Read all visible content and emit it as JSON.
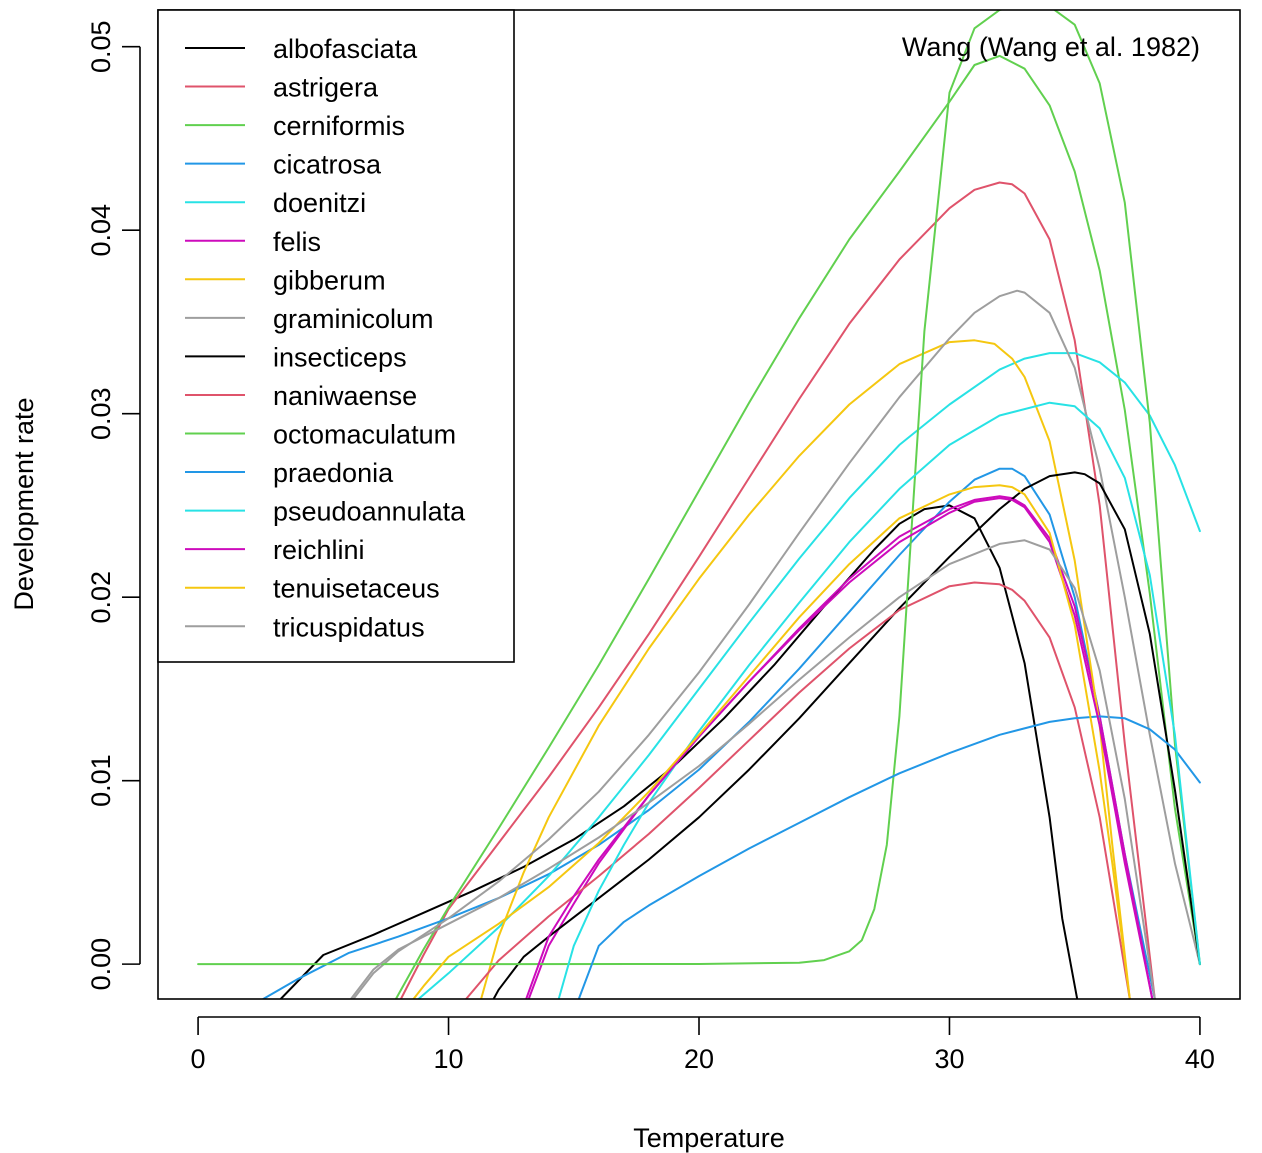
{
  "chart_data": {
    "type": "line",
    "title": "",
    "annotation": "Wang (Wang et al. 1982)",
    "xlabel": "Temperature",
    "ylabel": "Development rate",
    "xlim": [
      -1.6,
      41.6
    ],
    "ylim": [
      -0.0019,
      0.052
    ],
    "x_ticks": [
      0,
      10,
      20,
      30,
      40
    ],
    "y_ticks": [
      0.0,
      0.01,
      0.02,
      0.03,
      0.04,
      0.05
    ],
    "y_tick_labels": [
      "0.00",
      "0.01",
      "0.02",
      "0.03",
      "0.04",
      "0.05"
    ],
    "legend_position": "top-left",
    "grid": false,
    "series": [
      {
        "name": "albofasciata",
        "color": "#000000",
        "x": [
          3.3,
          5,
          7,
          9,
          11,
          13,
          15,
          17,
          19,
          21,
          23,
          25,
          27,
          28,
          29,
          30,
          31,
          32,
          33,
          34,
          34.5,
          35.1
        ],
        "y": [
          -0.0019,
          0.0005,
          0.0016,
          0.0028,
          0.004,
          0.0053,
          0.0068,
          0.0086,
          0.0108,
          0.0134,
          0.0163,
          0.0195,
          0.0226,
          0.024,
          0.0248,
          0.025,
          0.0243,
          0.0216,
          0.0164,
          0.008,
          0.0025,
          -0.0019
        ]
      },
      {
        "name": "astrigera",
        "color": "#DF536B",
        "x": [
          8.1,
          9,
          10,
          12,
          14,
          16,
          18,
          20,
          22,
          24,
          26,
          28,
          30,
          31,
          32,
          32.5,
          33,
          34,
          35,
          36,
          37,
          38.2
        ],
        "y": [
          -0.0019,
          0.0005,
          0.003,
          0.0066,
          0.0102,
          0.014,
          0.018,
          0.0222,
          0.0265,
          0.0308,
          0.0349,
          0.0384,
          0.0412,
          0.0422,
          0.0426,
          0.0425,
          0.042,
          0.0395,
          0.034,
          0.025,
          0.012,
          -0.0019
        ]
      },
      {
        "name": "cerniformis",
        "color": "#61D04F",
        "x": [
          7.9,
          9,
          10,
          12,
          14,
          16,
          18,
          20,
          22,
          24,
          26,
          28,
          30,
          31,
          32,
          33,
          34,
          35,
          36,
          37,
          38,
          39,
          40
        ],
        "y": [
          -0.0019,
          0.0008,
          0.0031,
          0.0074,
          0.0118,
          0.0163,
          0.021,
          0.0258,
          0.0306,
          0.0352,
          0.0395,
          0.0432,
          0.047,
          0.049,
          0.0495,
          0.0488,
          0.0468,
          0.0432,
          0.0378,
          0.0302,
          0.0202,
          0.0085,
          0.0
        ]
      },
      {
        "name": "cicatrosa",
        "color": "#2297E6",
        "x": [
          2.6,
          4,
          6,
          8,
          10,
          12,
          14,
          16,
          18,
          20,
          22,
          24,
          26,
          28,
          30,
          31,
          32,
          32.5,
          33,
          34,
          35,
          36,
          37,
          38.2
        ],
        "y": [
          -0.0019,
          -0.0008,
          0.0006,
          0.0015,
          0.0025,
          0.0036,
          0.0049,
          0.0065,
          0.0084,
          0.0106,
          0.0132,
          0.0161,
          0.0192,
          0.0223,
          0.0252,
          0.0264,
          0.027,
          0.027,
          0.0266,
          0.0245,
          0.02,
          0.0135,
          0.006,
          -0.0019
        ]
      },
      {
        "name": "doenitzi",
        "color": "#28E2E5",
        "x": [
          8.8,
          10,
          12,
          14,
          16,
          18,
          20,
          22,
          24,
          26,
          28,
          30,
          32,
          33,
          34,
          35,
          36,
          37,
          38,
          39,
          40
        ],
        "y": [
          -0.0019,
          -0.0005,
          0.002,
          0.0048,
          0.008,
          0.0114,
          0.015,
          0.0186,
          0.0221,
          0.0254,
          0.0283,
          0.0305,
          0.0324,
          0.033,
          0.0333,
          0.0333,
          0.0328,
          0.0317,
          0.0299,
          0.0272,
          0.0236
        ]
      },
      {
        "name": "felis",
        "color": "#CD0BBC",
        "x": [
          13.2,
          14,
          15,
          16,
          18,
          20,
          22,
          24,
          26,
          28,
          30,
          31,
          32,
          32.5,
          33,
          34,
          35,
          36,
          37,
          38.1
        ],
        "y": [
          -0.0019,
          0.001,
          0.0033,
          0.0055,
          0.0092,
          0.0124,
          0.0154,
          0.0183,
          0.021,
          0.0233,
          0.0248,
          0.0253,
          0.0255,
          0.0254,
          0.025,
          0.0232,
          0.0195,
          0.0135,
          0.006,
          -0.0019
        ]
      },
      {
        "name": "gibberum",
        "color": "#F5C710",
        "x": [
          11.3,
          12,
          13,
          14,
          16,
          18,
          20,
          22,
          24,
          26,
          28,
          30,
          31,
          31.8,
          32.5,
          33,
          34,
          35,
          36,
          36.5,
          37.2
        ],
        "y": [
          -0.0019,
          0.0015,
          0.005,
          0.008,
          0.013,
          0.0172,
          0.021,
          0.0245,
          0.0277,
          0.0305,
          0.0327,
          0.0339,
          0.034,
          0.0338,
          0.033,
          0.032,
          0.0285,
          0.022,
          0.013,
          0.0065,
          -0.0019
        ]
      },
      {
        "name": "graminicolum",
        "color": "#9E9E9E",
        "x": [
          6.2,
          7,
          8,
          10,
          12,
          14,
          16,
          18,
          20,
          22,
          24,
          26,
          28,
          30,
          31,
          32,
          32.7,
          33,
          34,
          35,
          36,
          37,
          38,
          39,
          40
        ],
        "y": [
          -0.0019,
          -0.0005,
          0.0007,
          0.0025,
          0.0045,
          0.0068,
          0.0094,
          0.0125,
          0.0159,
          0.0196,
          0.0235,
          0.0273,
          0.0309,
          0.0341,
          0.0355,
          0.0364,
          0.0367,
          0.0366,
          0.0355,
          0.0325,
          0.027,
          0.02,
          0.0125,
          0.0055,
          0.0
        ]
      },
      {
        "name": "insecticeps",
        "color": "#000000",
        "x": [
          11.8,
          12,
          13,
          14,
          16,
          18,
          20,
          22,
          24,
          26,
          28,
          30,
          32,
          33,
          34,
          35,
          35.4,
          36,
          37,
          38,
          39,
          40
        ],
        "y": [
          -0.0019,
          -0.0014,
          0.0004,
          0.0015,
          0.0036,
          0.0057,
          0.008,
          0.0106,
          0.0134,
          0.0164,
          0.0194,
          0.0222,
          0.0248,
          0.0259,
          0.0266,
          0.0268,
          0.0267,
          0.0262,
          0.0237,
          0.018,
          0.0095,
          0.0
        ]
      },
      {
        "name": "naniwaense",
        "color": "#DF536B",
        "x": [
          10.7,
          12,
          14,
          16,
          18,
          20,
          22,
          24,
          26,
          28,
          30,
          31,
          32,
          32.5,
          33,
          34,
          35,
          36,
          37.2
        ],
        "y": [
          -0.0019,
          0.0002,
          0.0026,
          0.0048,
          0.0071,
          0.0096,
          0.0122,
          0.0148,
          0.0172,
          0.0193,
          0.0206,
          0.0208,
          0.0207,
          0.0204,
          0.0198,
          0.0178,
          0.014,
          0.008,
          -0.0019
        ]
      },
      {
        "name": "octomaculatum",
        "color": "#61D04F",
        "x": [
          0,
          10,
          20,
          24,
          25,
          26,
          26.5,
          27,
          27.5,
          28,
          28.5,
          29,
          30,
          31,
          32,
          33,
          34,
          35,
          36,
          37,
          38,
          39,
          40
        ],
        "y": [
          0,
          0,
          1e-05,
          8e-05,
          0.00022,
          0.0007,
          0.0013,
          0.003,
          0.0065,
          0.0135,
          0.024,
          0.0345,
          0.0475,
          0.051,
          0.052,
          0.0523,
          0.0522,
          0.0512,
          0.048,
          0.0415,
          0.0295,
          0.012,
          0.0
        ]
      },
      {
        "name": "praedonia",
        "color": "#2297E6",
        "x": [
          15.2,
          16,
          17,
          18,
          20,
          22,
          24,
          26,
          28,
          30,
          32,
          34,
          35,
          36,
          37,
          38,
          39,
          40
        ],
        "y": [
          -0.0019,
          0.001,
          0.0023,
          0.0032,
          0.0048,
          0.0063,
          0.0077,
          0.0091,
          0.0104,
          0.0115,
          0.0125,
          0.0132,
          0.0134,
          0.0135,
          0.0134,
          0.0128,
          0.0117,
          0.0099
        ]
      },
      {
        "name": "pseudoannulata",
        "color": "#28E2E5",
        "x": [
          14.4,
          15,
          16,
          17,
          18,
          20,
          22,
          24,
          26,
          28,
          30,
          32,
          34,
          35,
          36,
          37,
          38,
          39,
          40
        ],
        "y": [
          -0.0019,
          0.001,
          0.004,
          0.0065,
          0.0088,
          0.0127,
          0.0163,
          0.0197,
          0.023,
          0.0259,
          0.0283,
          0.0299,
          0.0306,
          0.0304,
          0.0292,
          0.0265,
          0.0212,
          0.0125,
          0.0
        ]
      },
      {
        "name": "reichlini",
        "color": "#CD0BBC",
        "x": [
          13.1,
          14,
          15,
          16,
          18,
          20,
          22,
          24,
          26,
          28,
          30,
          31,
          32,
          32.5,
          33,
          34,
          35,
          36,
          37,
          38.1
        ],
        "y": [
          -0.0019,
          0.0015,
          0.0037,
          0.0057,
          0.0092,
          0.0124,
          0.0154,
          0.0182,
          0.0208,
          0.023,
          0.0246,
          0.0252,
          0.0254,
          0.0253,
          0.0249,
          0.023,
          0.019,
          0.013,
          0.0055,
          -0.0019
        ]
      },
      {
        "name": "tenuisetaceus",
        "color": "#F5C710",
        "x": [
          8.6,
          9,
          10,
          12,
          14,
          16,
          18,
          20,
          22,
          24,
          26,
          28,
          30,
          31,
          32,
          32.5,
          33,
          34,
          35,
          36,
          36.5,
          37.2
        ],
        "y": [
          -0.0019,
          -0.0012,
          0.0004,
          0.0022,
          0.0042,
          0.0066,
          0.0094,
          0.0125,
          0.0157,
          0.0189,
          0.0218,
          0.0243,
          0.0256,
          0.026,
          0.0261,
          0.026,
          0.0256,
          0.0235,
          0.0185,
          0.0105,
          0.0055,
          -0.0019
        ]
      },
      {
        "name": "tricuspidatus",
        "color": "#9E9E9E",
        "x": [
          6.1,
          7,
          8,
          10,
          12,
          14,
          16,
          18,
          20,
          22,
          24,
          26,
          28,
          30,
          32,
          33,
          34,
          35,
          36,
          37,
          38.2
        ],
        "y": [
          -0.0019,
          -0.0003,
          0.0008,
          0.0022,
          0.0036,
          0.0052,
          0.0069,
          0.0088,
          0.0108,
          0.0131,
          0.0155,
          0.0178,
          0.02,
          0.0218,
          0.0229,
          0.0231,
          0.0226,
          0.0205,
          0.016,
          0.009,
          -0.0019
        ]
      }
    ]
  }
}
